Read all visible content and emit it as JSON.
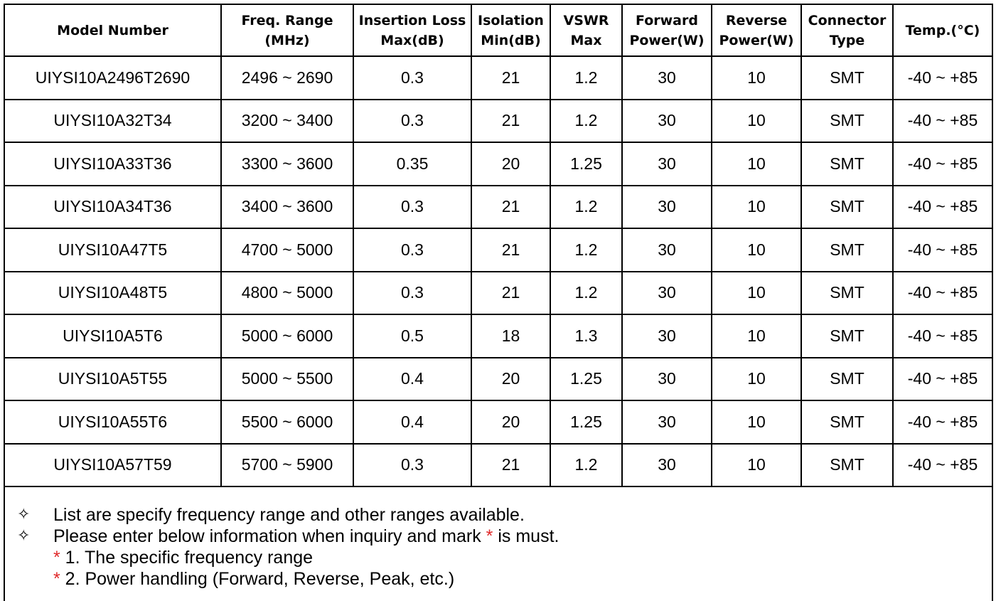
{
  "table": {
    "headers": [
      [
        "Model Number",
        ""
      ],
      [
        "Freq. Range",
        "(MHz)"
      ],
      [
        "Insertion Loss",
        "Max(dB)"
      ],
      [
        "Isolation",
        "Min(dB)"
      ],
      [
        "VSWR",
        "Max"
      ],
      [
        "Forward",
        "Power(W)"
      ],
      [
        "Reverse",
        "Power(W)"
      ],
      [
        "Connector",
        "Type"
      ],
      [
        "Temp.(°C)",
        ""
      ]
    ],
    "rows": [
      [
        "UIYSI10A2496T2690",
        "2496 ~ 2690",
        "0.3",
        "21",
        "1.2",
        "30",
        "10",
        "SMT",
        "-40 ~ +85"
      ],
      [
        "UIYSI10A32T34",
        "3200 ~ 3400",
        "0.3",
        "21",
        "1.2",
        "30",
        "10",
        "SMT",
        "-40 ~ +85"
      ],
      [
        "UIYSI10A33T36",
        "3300 ~ 3600",
        "0.35",
        "20",
        "1.25",
        "30",
        "10",
        "SMT",
        "-40 ~ +85"
      ],
      [
        "UIYSI10A34T36",
        "3400 ~ 3600",
        "0.3",
        "21",
        "1.2",
        "30",
        "10",
        "SMT",
        "-40 ~ +85"
      ],
      [
        "UIYSI10A47T5",
        "4700 ~ 5000",
        "0.3",
        "21",
        "1.2",
        "30",
        "10",
        "SMT",
        "-40 ~ +85"
      ],
      [
        "UIYSI10A48T5",
        "4800 ~ 5000",
        "0.3",
        "21",
        "1.2",
        "30",
        "10",
        "SMT",
        "-40 ~ +85"
      ],
      [
        "UIYSI10A5T6",
        "5000 ~ 6000",
        "0.5",
        "18",
        "1.3",
        "30",
        "10",
        "SMT",
        "-40 ~ +85"
      ],
      [
        "UIYSI10A5T55",
        "5000 ~ 5500",
        "0.4",
        "20",
        "1.25",
        "30",
        "10",
        "SMT",
        "-40 ~ +85"
      ],
      [
        "UIYSI10A55T6",
        "5500 ~ 6000",
        "0.4",
        "20",
        "1.25",
        "30",
        "10",
        "SMT",
        "-40 ~ +85"
      ],
      [
        "UIYSI10A57T59",
        "5700 ~ 5900",
        "0.3",
        "21",
        "1.2",
        "30",
        "10",
        "SMT",
        "-40 ~ +85"
      ]
    ]
  },
  "notes": {
    "bullet_symbol": "✧",
    "line1": "List are specify frequency range and other ranges available.",
    "line2_before": "Please enter below information when inquiry and mark ",
    "star": "*",
    "line2_after": " is must.",
    "item1": " 1. The specific frequency range",
    "item2": " 2. Power handling (Forward, Reverse, Peak, etc.)"
  },
  "colors": {
    "star": "#e0292a",
    "border": "#000000"
  }
}
